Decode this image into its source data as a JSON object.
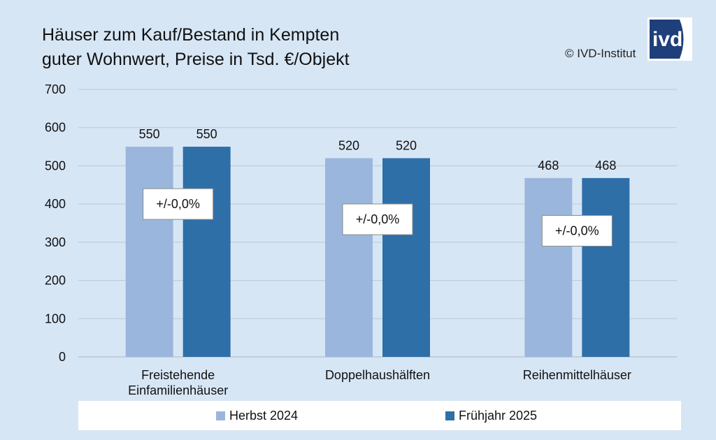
{
  "title_lines": [
    "Häuser zum Kauf/Bestand in Kempten",
    "guter Wohnwert, Preise in Tsd. €/Objekt"
  ],
  "copyright": "© IVD-Institut",
  "logo": {
    "text": "ivd",
    "color_dark": "#1f3f7a",
    "color_light": "#ffffff"
  },
  "colors": {
    "background": "#d7e6f5",
    "series_1": "#9bb6dc",
    "series_2": "#2e6fa8",
    "grid": "#b9c8d8"
  },
  "chart_data": {
    "type": "bar",
    "title": "Häuser zum Kauf/Bestand in Kempten guter Wohnwert, Preise in Tsd. €/Objekt",
    "categories": [
      [
        "Freistehende",
        "Einfamilienhäuser"
      ],
      [
        "Doppelhaushälften"
      ],
      [
        "Reihenmittelhäuser"
      ]
    ],
    "series": [
      {
        "name": "Herbst 2024",
        "values": [
          550,
          520,
          468
        ],
        "color": "#9bb6dc"
      },
      {
        "name": "Frühjahr 2025",
        "values": [
          550,
          520,
          468
        ],
        "color": "#2e6fa8"
      }
    ],
    "annotations": [
      {
        "category_index": 0,
        "text": "+/-0,0%",
        "y_value": 400
      },
      {
        "category_index": 1,
        "text": "+/-0,0%",
        "y_value": 360
      },
      {
        "category_index": 2,
        "text": "+/-0,0%",
        "y_value": 330
      }
    ],
    "ylim": [
      0,
      700
    ],
    "yticks": [
      0,
      100,
      200,
      300,
      400,
      500,
      600,
      700
    ],
    "grid": true,
    "legend_position": "bottom",
    "xlabel": "",
    "ylabel": ""
  }
}
